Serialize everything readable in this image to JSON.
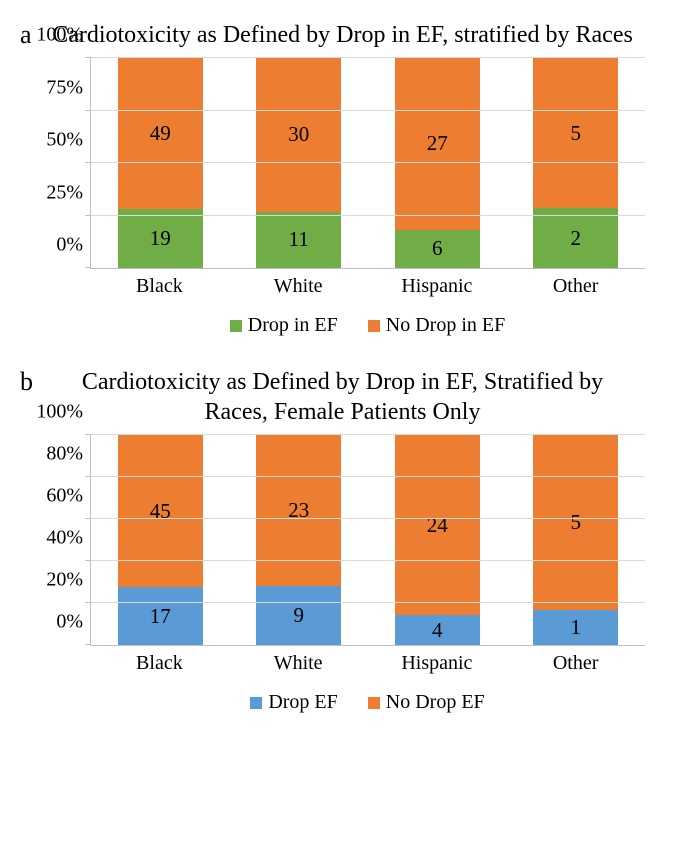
{
  "panel_a": {
    "letter": "a",
    "title": "Cardiotoxicity as Defined by Drop in EF, stratified by Races",
    "type": "stacked_bar_100pct",
    "categories": [
      "Black",
      "White",
      "Hispanic",
      "Other"
    ],
    "series": [
      {
        "name": "Drop in EF",
        "color": "#70ad47",
        "values": [
          19,
          11,
          6,
          2
        ]
      },
      {
        "name": "No Drop in EF",
        "color": "#ed7d31",
        "values": [
          49,
          30,
          27,
          5
        ]
      }
    ],
    "ylim": [
      0,
      100
    ],
    "ytick_step": 25,
    "ytick_suffix": "%",
    "bar_width_pct": 70,
    "grid_color": "#d9d9d9",
    "axis_color": "#bfbfbf",
    "background_color": "#ffffff",
    "label_fontsize": 20,
    "value_fontsize": 21,
    "title_fontsize": 24
  },
  "panel_b": {
    "letter": "b",
    "title": "Cardiotoxicity as Defined by Drop in EF, Stratified by Races, Female Patients Only",
    "type": "stacked_bar_100pct",
    "categories": [
      "Black",
      "White",
      "Hispanic",
      "Other"
    ],
    "series": [
      {
        "name": "Drop EF",
        "color": "#5b9bd5",
        "values": [
          17,
          9,
          4,
          1
        ]
      },
      {
        "name": "No Drop EF",
        "color": "#ed7d31",
        "values": [
          45,
          23,
          24,
          5
        ]
      }
    ],
    "ylim": [
      0,
      100
    ],
    "ytick_step": 20,
    "ytick_suffix": "%",
    "bar_width_pct": 70,
    "grid_color": "#d9d9d9",
    "axis_color": "#bfbfbf",
    "background_color": "#ffffff",
    "label_fontsize": 20,
    "value_fontsize": 21,
    "title_fontsize": 24
  }
}
